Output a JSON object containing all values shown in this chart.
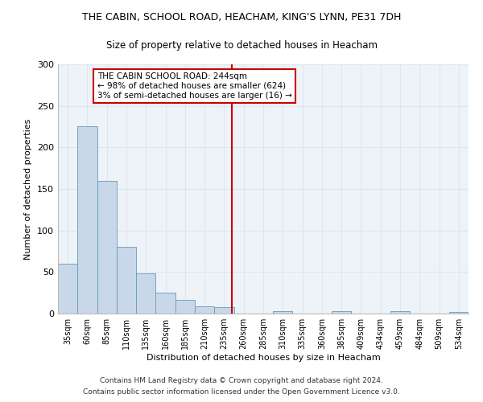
{
  "title1": "THE CABIN, SCHOOL ROAD, HEACHAM, KING'S LYNN, PE31 7DH",
  "title2": "Size of property relative to detached houses in Heacham",
  "xlabel": "Distribution of detached houses by size in Heacham",
  "ylabel": "Number of detached properties",
  "footer1": "Contains HM Land Registry data © Crown copyright and database right 2024.",
  "footer2": "Contains public sector information licensed under the Open Government Licence v3.0.",
  "bin_labels": [
    "35sqm",
    "60sqm",
    "85sqm",
    "110sqm",
    "135sqm",
    "160sqm",
    "185sqm",
    "210sqm",
    "235sqm",
    "260sqm",
    "285sqm",
    "310sqm",
    "335sqm",
    "360sqm",
    "385sqm",
    "409sqm",
    "434sqm",
    "459sqm",
    "484sqm",
    "509sqm",
    "534sqm"
  ],
  "bar_values": [
    60,
    225,
    160,
    80,
    48,
    25,
    16,
    9,
    8,
    0,
    0,
    3,
    0,
    0,
    3,
    0,
    0,
    3,
    0,
    0,
    2
  ],
  "bar_color": "#c8d8e8",
  "bar_edge_color": "#6699bb",
  "grid_color": "#dde6f0",
  "bg_color": "#eef3f8",
  "vline_x_idx": 8.4,
  "vline_color": "#cc0000",
  "annotation_line1": "THE CABIN SCHOOL ROAD: 244sqm",
  "annotation_line2": "← 98% of detached houses are smaller (624)",
  "annotation_line3": "3% of semi-detached houses are larger (16) →",
  "annotation_box_color": "#cc0000",
  "ylim": [
    0,
    300
  ],
  "yticks": [
    0,
    50,
    100,
    150,
    200,
    250,
    300
  ]
}
